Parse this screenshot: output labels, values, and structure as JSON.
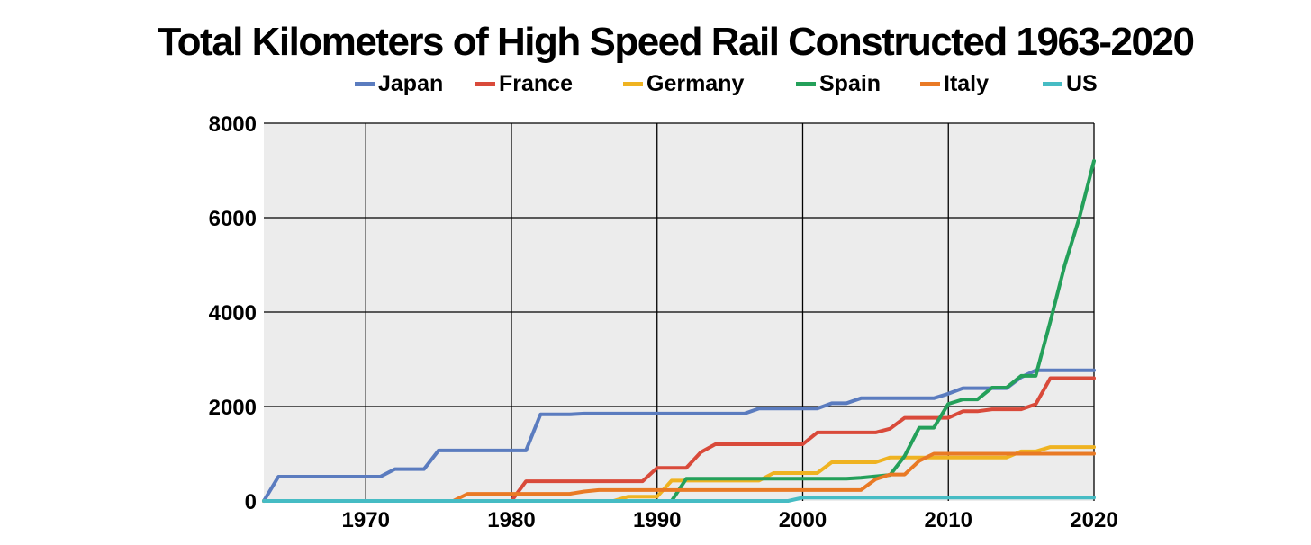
{
  "chart_data": {
    "type": "line",
    "title": "Total Kilometers of High Speed Rail Constructed 1963-2020",
    "xlabel": "",
    "ylabel": "",
    "xlim": [
      1963,
      2020
    ],
    "ylim": [
      0,
      8000
    ],
    "x_ticks": [
      1970,
      1980,
      1990,
      2000,
      2010,
      2020
    ],
    "y_ticks": [
      0,
      2000,
      4000,
      6000,
      8000
    ],
    "grid": true,
    "legend_position": "top",
    "series": [
      {
        "name": "Japan",
        "color": "#5b7cbf",
        "points": [
          [
            1963,
            0
          ],
          [
            1964,
            515
          ],
          [
            1971,
            515
          ],
          [
            1972,
            675
          ],
          [
            1974,
            675
          ],
          [
            1975,
            1069
          ],
          [
            1981,
            1069
          ],
          [
            1982,
            1832
          ],
          [
            1984,
            1832
          ],
          [
            1985,
            1850
          ],
          [
            1996,
            1850
          ],
          [
            1997,
            1958
          ],
          [
            2001,
            1958
          ],
          [
            2002,
            2069
          ],
          [
            2003,
            2069
          ],
          [
            2004,
            2176
          ],
          [
            2009,
            2176
          ],
          [
            2010,
            2270
          ],
          [
            2011,
            2388
          ],
          [
            2014,
            2388
          ],
          [
            2015,
            2620
          ],
          [
            2016,
            2765
          ],
          [
            2020,
            2765
          ]
        ]
      },
      {
        "name": "France",
        "color": "#d94a3a",
        "points": [
          [
            1963,
            0
          ],
          [
            1980,
            0
          ],
          [
            1981,
            417
          ],
          [
            1989,
            417
          ],
          [
            1990,
            699
          ],
          [
            1992,
            699
          ],
          [
            1993,
            1030
          ],
          [
            1994,
            1200
          ],
          [
            2000,
            1200
          ],
          [
            2001,
            1450
          ],
          [
            2005,
            1450
          ],
          [
            2006,
            1530
          ],
          [
            2007,
            1760
          ],
          [
            2009,
            1760
          ],
          [
            2010,
            1760
          ],
          [
            2011,
            1900
          ],
          [
            2012,
            1900
          ],
          [
            2013,
            1940
          ],
          [
            2015,
            1940
          ],
          [
            2016,
            2050
          ],
          [
            2017,
            2600
          ],
          [
            2020,
            2600
          ]
        ]
      },
      {
        "name": "Germany",
        "color": "#efb321",
        "points": [
          [
            1963,
            0
          ],
          [
            1987,
            0
          ],
          [
            1988,
            90
          ],
          [
            1990,
            90
          ],
          [
            1991,
            430
          ],
          [
            1997,
            430
          ],
          [
            1998,
            590
          ],
          [
            2001,
            590
          ],
          [
            2002,
            820
          ],
          [
            2005,
            820
          ],
          [
            2006,
            920
          ],
          [
            2009,
            920
          ],
          [
            2014,
            920
          ],
          [
            2015,
            1050
          ],
          [
            2016,
            1050
          ],
          [
            2017,
            1140
          ],
          [
            2020,
            1140
          ]
        ]
      },
      {
        "name": "Spain",
        "color": "#24a05a",
        "points": [
          [
            1963,
            0
          ],
          [
            1991,
            0
          ],
          [
            1992,
            471
          ],
          [
            2003,
            471
          ],
          [
            2004,
            490
          ],
          [
            2006,
            550
          ],
          [
            2007,
            950
          ],
          [
            2008,
            1550
          ],
          [
            2009,
            1550
          ],
          [
            2010,
            2056
          ],
          [
            2011,
            2150
          ],
          [
            2012,
            2150
          ],
          [
            2013,
            2400
          ],
          [
            2014,
            2400
          ],
          [
            2015,
            2650
          ],
          [
            2016,
            2650
          ],
          [
            2017,
            3800
          ],
          [
            2018,
            5000
          ],
          [
            2019,
            6000
          ],
          [
            2020,
            7200
          ]
        ]
      },
      {
        "name": "Italy",
        "color": "#e97a25",
        "points": [
          [
            1963,
            0
          ],
          [
            1976,
            0
          ],
          [
            1977,
            150
          ],
          [
            1984,
            150
          ],
          [
            1985,
            200
          ],
          [
            1986,
            230
          ],
          [
            2004,
            230
          ],
          [
            2005,
            460
          ],
          [
            2006,
            560
          ],
          [
            2007,
            560
          ],
          [
            2008,
            850
          ],
          [
            2009,
            1000
          ],
          [
            2020,
            1000
          ]
        ]
      },
      {
        "name": "US",
        "color": "#46bcc4",
        "points": [
          [
            1963,
            0
          ],
          [
            1999,
            0
          ],
          [
            2000,
            70
          ],
          [
            2020,
            70
          ]
        ]
      }
    ]
  }
}
